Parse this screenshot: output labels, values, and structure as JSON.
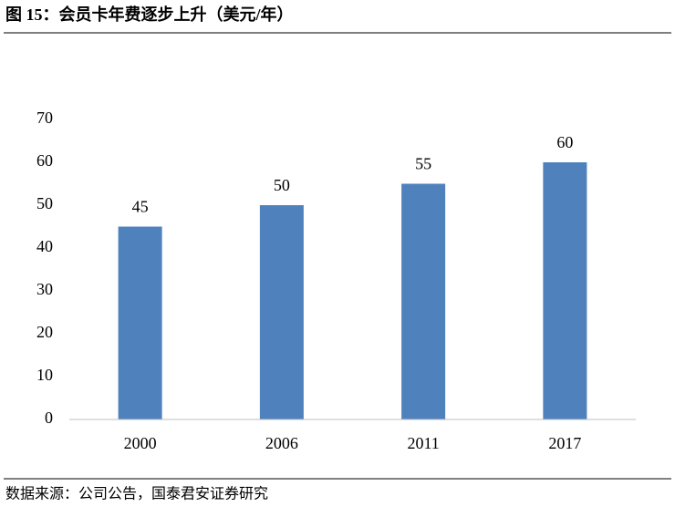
{
  "chart_data": {
    "type": "bar",
    "title": "图 15：会员卡年费逐步上升（美元/年）",
    "source": "数据来源：公司公告，国泰君安证券研究",
    "categories": [
      "2000",
      "2006",
      "2011",
      "2017"
    ],
    "values": [
      45,
      50,
      55,
      60
    ],
    "color": "#4f81bd",
    "ylim": [
      0,
      70
    ],
    "yticks": [
      0,
      10,
      20,
      30,
      40,
      50,
      60,
      70
    ],
    "grid": false
  }
}
